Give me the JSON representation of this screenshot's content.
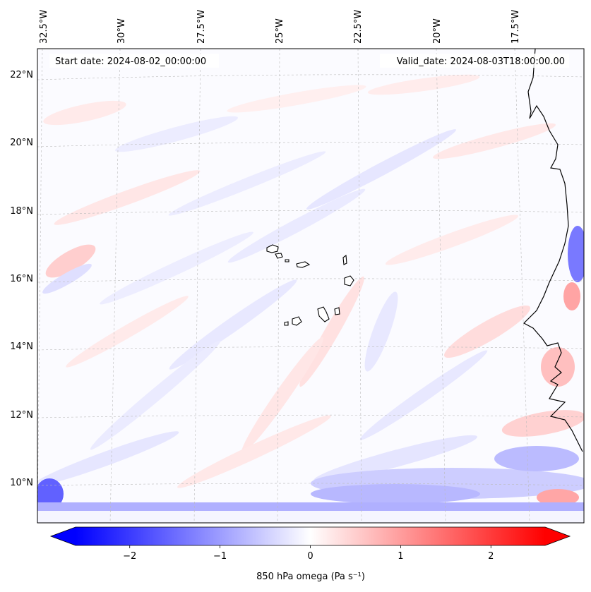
{
  "map": {
    "start_date_label": "Start date: 2024-08-02_00:00:00",
    "valid_date_label": "Valid_date: 2024-08-03T18:00:00.00",
    "longitude_labels": [
      "32.5°W",
      "30°W",
      "27.5°W",
      "25°W",
      "22.5°W",
      "20°W",
      "17.5°W"
    ],
    "latitude_labels": [
      "22°N",
      "20°N",
      "18°N",
      "16°N",
      "14°N",
      "12°N",
      "10°N"
    ],
    "features": [
      "Cape Verde Islands",
      "West African coastline"
    ]
  },
  "colorbar": {
    "label": "850 hPa omega (Pa s⁻¹)",
    "ticks": [
      "−2",
      "−1",
      "0",
      "1",
      "2"
    ],
    "tick_values": [
      -2,
      -1,
      0,
      1,
      2
    ],
    "range": [
      -2.6,
      2.6
    ],
    "colormap": "bwr",
    "colors": {
      "min": "#0000ff",
      "mid": "#ffffff",
      "max": "#ff0000"
    }
  }
}
